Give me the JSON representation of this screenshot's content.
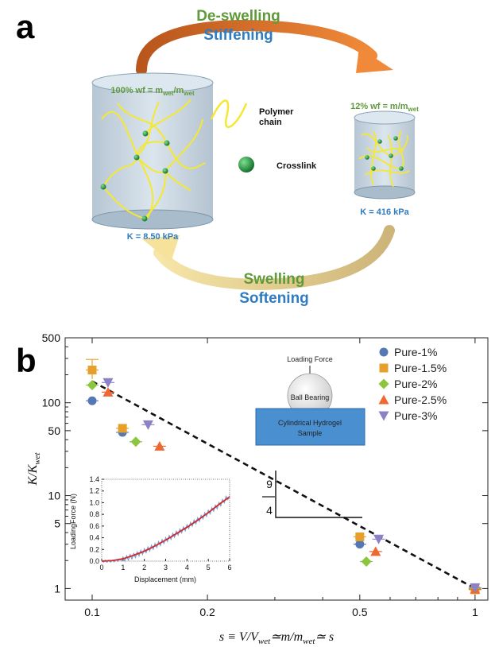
{
  "panel_a": {
    "letter": "a",
    "top_green": "De-swelling",
    "top_blue": "Stiffening",
    "bottom_green": "Swelling",
    "bottom_blue": "Softening",
    "large_cylinder": {
      "wf_main": "100% wf = m",
      "wf_sub1": "wet",
      "wf_mid": "/m",
      "wf_sub2": "wet",
      "k_label": "K = 8.50 kPa"
    },
    "small_cylinder": {
      "wf_main": "12% wf = m/m",
      "wf_sub": "wet",
      "k_label": "K = 416 kPa"
    },
    "key": {
      "polymer": "Polymer",
      "chain": "chain",
      "crosslink": "Crosslink"
    },
    "colors": {
      "arrow_top": "#e07a2e",
      "arrow_bottom": "#e8c98b",
      "polymer": "#f5e834",
      "crosslink": "#1f8a3a",
      "cylinder": "#bfcfdc"
    }
  },
  "panel_b": {
    "letter": "b",
    "schematic": {
      "force": "Loading Force",
      "ball": "Ball Bearing",
      "sample_line1": "Cylindrical Hydrogel",
      "sample_line2": "Sample"
    },
    "slope": {
      "num": "9",
      "den": "4"
    },
    "ylabel_main": "K/K",
    "ylabel_sub": "wet",
    "xlabel": "s ≡ V/V",
    "xlabel_sub": "wet",
    "xlabel_mid": "≃m/m",
    "xlabel_sub2": "wet",
    "xlabel_end": "≃ s"
  },
  "chart_data": {
    "type": "scatter",
    "xscale": "log",
    "yscale": "log",
    "xlim": [
      0.085,
      1.08
    ],
    "ylim": [
      0.75,
      500
    ],
    "x_ticks": [
      "0.1",
      "0.2",
      "0.5",
      "1"
    ],
    "y_ticks": [
      "1",
      "5",
      "10",
      "50",
      "100",
      "500"
    ],
    "legend_position": "top-right",
    "series": [
      {
        "name": "Pure-1%",
        "color": "#5478b3",
        "marker": "circle",
        "points": [
          [
            0.1,
            105
          ],
          [
            0.12,
            48
          ],
          [
            0.5,
            3.0
          ],
          [
            1.0,
            1.0
          ]
        ]
      },
      {
        "name": "Pure-1.5%",
        "color": "#e6a02a",
        "marker": "square",
        "points": [
          [
            0.1,
            225
          ],
          [
            0.12,
            53
          ],
          [
            0.5,
            3.6
          ],
          [
            1.0,
            0.97
          ]
        ]
      },
      {
        "name": "Pure-2%",
        "color": "#8cc63f",
        "marker": "diamond",
        "points": [
          [
            0.1,
            155
          ],
          [
            0.13,
            38
          ],
          [
            0.52,
            1.95
          ],
          [
            1.0,
            1.0
          ]
        ]
      },
      {
        "name": "Pure-2.5%",
        "color": "#ef6a32",
        "marker": "triangle-up",
        "points": [
          [
            0.11,
            130
          ],
          [
            0.15,
            34
          ],
          [
            0.55,
            2.5
          ],
          [
            1.0,
            0.98
          ]
        ]
      },
      {
        "name": "Pure-3%",
        "color": "#8a82c4",
        "marker": "triangle-down",
        "points": [
          [
            0.11,
            165
          ],
          [
            0.14,
            58
          ],
          [
            0.56,
            3.4
          ],
          [
            1.0,
            1.02
          ]
        ]
      }
    ],
    "fit_line": {
      "style": "dashed",
      "slope": 2.25,
      "points": [
        [
          0.1,
          170
        ],
        [
          1.0,
          1.0
        ]
      ]
    },
    "inset": {
      "type": "line",
      "xlabel": "Displacement (mm)",
      "ylabel": "LoadingForce (N)",
      "xlim": [
        0,
        6
      ],
      "ylim": [
        0,
        1.4
      ],
      "x_ticks": [
        "0",
        "1",
        "2",
        "3",
        "4",
        "5",
        "6"
      ],
      "y_ticks": [
        "0.0",
        "0.2",
        "0.4",
        "0.6",
        "0.8",
        "1.0",
        "1.2",
        "1.4"
      ],
      "series": [
        {
          "name": "data",
          "color": "#6fa0d8",
          "x": [
            0,
            0.5,
            1,
            1.5,
            2,
            2.5,
            3,
            3.5,
            4,
            4.5,
            5,
            5.5,
            6
          ],
          "y": [
            0.0,
            0.0,
            0.03,
            0.09,
            0.17,
            0.26,
            0.36,
            0.47,
            0.58,
            0.7,
            0.83,
            0.96,
            1.12
          ]
        },
        {
          "name": "fit",
          "color": "#d62828",
          "x": [
            0,
            0.5,
            1,
            1.5,
            2,
            2.5,
            3,
            3.5,
            4,
            4.5,
            5,
            5.5,
            6
          ],
          "y": [
            0.0,
            0.01,
            0.04,
            0.1,
            0.17,
            0.26,
            0.36,
            0.47,
            0.58,
            0.7,
            0.83,
            0.97,
            1.1
          ]
        }
      ]
    }
  }
}
